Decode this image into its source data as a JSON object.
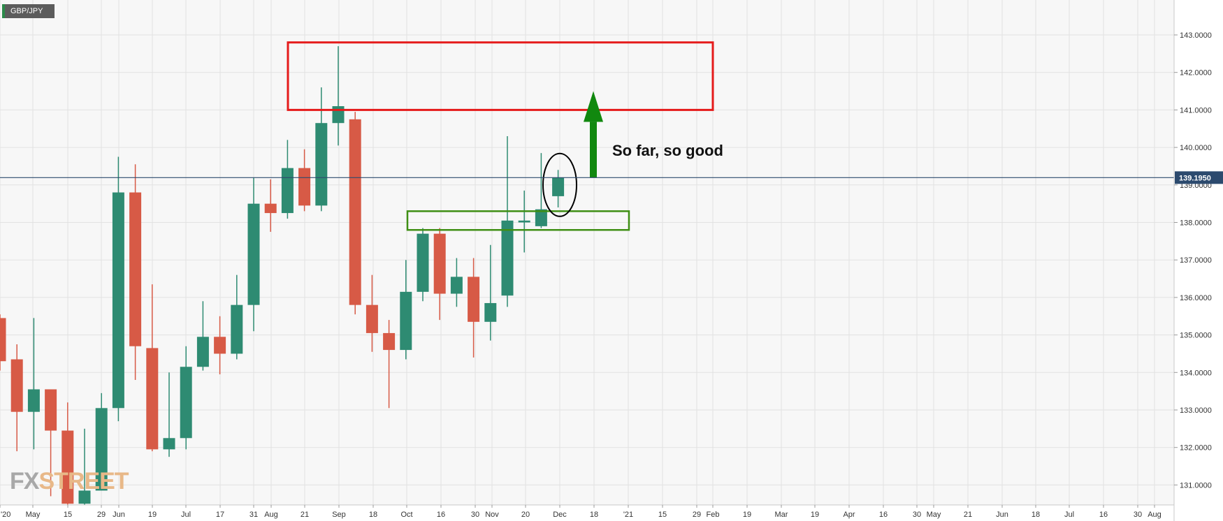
{
  "symbol": "GBP/JPY",
  "annotation": "So far, so good",
  "logo": {
    "fx": "FX",
    "street": "STREET"
  },
  "colors": {
    "up": "#2e8b72",
    "down": "#d75a46",
    "resistance_box": "#e51b1b",
    "support_box": "#3f8f14",
    "arrow": "#11880f",
    "price_line": "#2c4a6e",
    "grid": "#e2e2e2",
    "background": "#f7f7f7"
  },
  "chart_data": {
    "type": "candlestick",
    "timeframe": "weekly",
    "ylim": [
      130.5,
      143.6
    ],
    "y_ticks": [
      "143.0000",
      "142.0000",
      "141.0000",
      "140.0000",
      "139.0000",
      "138.0000",
      "137.0000",
      "136.0000",
      "135.0000",
      "134.0000",
      "133.0000",
      "132.0000",
      "131.0000"
    ],
    "current_price": "139.1950",
    "x_ticks": [
      "'20",
      "May",
      "15",
      "29",
      "Jun",
      "19",
      "Jul",
      "17",
      "31",
      "Aug",
      "21",
      "Sep",
      "18",
      "Oct",
      "16",
      "30",
      "Nov",
      "20",
      "Dec",
      "18",
      "'21",
      "15",
      "29",
      "Feb",
      "19",
      "Mar",
      "19",
      "Apr",
      "16",
      "30",
      "May",
      "21",
      "Jun",
      "18",
      "Jul",
      "16",
      "30",
      "Aug"
    ],
    "candles": [
      {
        "o": 135.45,
        "h": 135.55,
        "l": 134.05,
        "c": 134.3
      },
      {
        "o": 134.35,
        "h": 134.75,
        "l": 131.9,
        "c": 132.95
      },
      {
        "o": 132.95,
        "h": 135.45,
        "l": 131.95,
        "c": 133.55
      },
      {
        "o": 133.55,
        "h": 133.55,
        "l": 130.7,
        "c": 132.45
      },
      {
        "o": 132.45,
        "h": 133.2,
        "l": 130.4,
        "c": 130.5
      },
      {
        "o": 130.5,
        "h": 132.5,
        "l": 130.4,
        "c": 130.85
      },
      {
        "o": 130.85,
        "h": 133.45,
        "l": 130.85,
        "c": 133.05
      },
      {
        "o": 133.05,
        "h": 139.75,
        "l": 132.7,
        "c": 138.8
      },
      {
        "o": 138.8,
        "h": 139.55,
        "l": 133.8,
        "c": 134.7
      },
      {
        "o": 134.65,
        "h": 136.35,
        "l": 131.9,
        "c": 131.95
      },
      {
        "o": 131.95,
        "h": 134.0,
        "l": 131.75,
        "c": 132.25
      },
      {
        "o": 132.25,
        "h": 134.7,
        "l": 131.95,
        "c": 134.15
      },
      {
        "o": 134.15,
        "h": 135.9,
        "l": 134.05,
        "c": 134.95
      },
      {
        "o": 134.95,
        "h": 135.5,
        "l": 133.95,
        "c": 134.5
      },
      {
        "o": 134.5,
        "h": 136.6,
        "l": 134.35,
        "c": 135.8
      },
      {
        "o": 135.8,
        "h": 139.2,
        "l": 135.1,
        "c": 138.5
      },
      {
        "o": 138.5,
        "h": 139.15,
        "l": 137.75,
        "c": 138.25
      },
      {
        "o": 138.25,
        "h": 140.2,
        "l": 138.1,
        "c": 139.45
      },
      {
        "o": 139.45,
        "h": 139.95,
        "l": 138.3,
        "c": 138.45
      },
      {
        "o": 138.45,
        "h": 141.6,
        "l": 138.3,
        "c": 140.65
      },
      {
        "o": 140.65,
        "h": 142.7,
        "l": 140.05,
        "c": 141.1
      },
      {
        "o": 140.75,
        "h": 140.95,
        "l": 135.55,
        "c": 135.8
      },
      {
        "o": 135.8,
        "h": 136.6,
        "l": 134.55,
        "c": 135.05
      },
      {
        "o": 135.05,
        "h": 135.4,
        "l": 133.05,
        "c": 134.6
      },
      {
        "o": 134.6,
        "h": 137.0,
        "l": 134.35,
        "c": 136.15
      },
      {
        "o": 136.15,
        "h": 137.85,
        "l": 135.9,
        "c": 137.7
      },
      {
        "o": 137.7,
        "h": 137.85,
        "l": 135.4,
        "c": 136.1
      },
      {
        "o": 136.1,
        "h": 137.05,
        "l": 135.75,
        "c": 136.55
      },
      {
        "o": 136.55,
        "h": 137.05,
        "l": 134.4,
        "c": 135.35
      },
      {
        "o": 135.35,
        "h": 137.4,
        "l": 134.85,
        "c": 135.85
      },
      {
        "o": 136.05,
        "h": 140.3,
        "l": 135.75,
        "c": 138.05
      },
      {
        "o": 138.0,
        "h": 138.85,
        "l": 137.2,
        "c": 138.05
      },
      {
        "o": 137.9,
        "h": 139.85,
        "l": 137.85,
        "c": 138.35
      },
      {
        "o": 138.7,
        "h": 139.4,
        "l": 138.4,
        "c": 139.2
      }
    ],
    "zones": {
      "resistance": {
        "from": 141.0,
        "to": 142.8
      },
      "support": {
        "from": 137.8,
        "to": 138.3
      }
    },
    "target_arrow": {
      "from": 139.2,
      "to": 141.5
    }
  }
}
